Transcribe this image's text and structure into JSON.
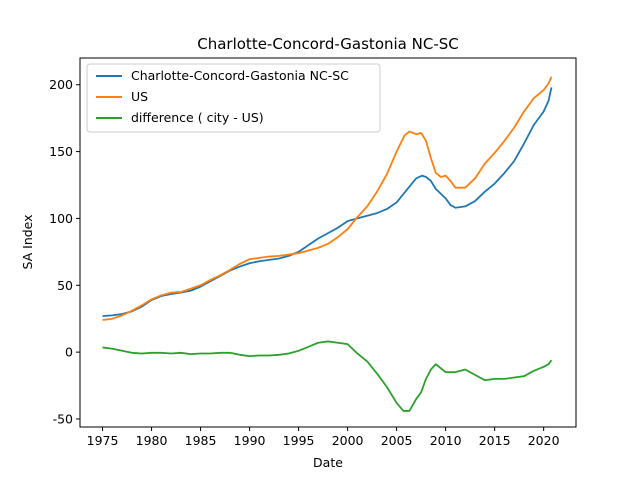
{
  "chart_data": {
    "type": "line",
    "title": "Charlotte-Concord-Gastonia NC-SC",
    "xlabel": "Date",
    "ylabel": "SA Index",
    "xlim": [
      1972.7,
      2023.3
    ],
    "ylim": [
      -56,
      220
    ],
    "xticks": [
      1975,
      1980,
      1985,
      1990,
      1995,
      2000,
      2005,
      2010,
      2015,
      2020
    ],
    "yticks": [
      -50,
      0,
      50,
      100,
      150,
      200
    ],
    "grid": false,
    "legend_position": "top-left",
    "series": [
      {
        "name": "Charlotte-Concord-Gastonia NC-SC",
        "color": "#1f77b4",
        "points": [
          [
            1975,
            27
          ],
          [
            1976,
            27.5
          ],
          [
            1977,
            28.5
          ],
          [
            1978,
            30.5
          ],
          [
            1979,
            34
          ],
          [
            1980,
            39
          ],
          [
            1981,
            42
          ],
          [
            1982,
            43.5
          ],
          [
            1983,
            44.5
          ],
          [
            1984,
            46
          ],
          [
            1985,
            49
          ],
          [
            1986,
            53
          ],
          [
            1987,
            57
          ],
          [
            1988,
            61
          ],
          [
            1989,
            64
          ],
          [
            1990,
            66.5
          ],
          [
            1991,
            68
          ],
          [
            1992,
            69
          ],
          [
            1993,
            70
          ],
          [
            1994,
            72
          ],
          [
            1995,
            75
          ],
          [
            1996,
            80
          ],
          [
            1997,
            85
          ],
          [
            1998,
            89
          ],
          [
            1999,
            93
          ],
          [
            2000,
            98
          ],
          [
            2001,
            100
          ],
          [
            2002,
            102
          ],
          [
            2003,
            104
          ],
          [
            2004,
            107
          ],
          [
            2005,
            112
          ],
          [
            2006,
            121
          ],
          [
            2007,
            130
          ],
          [
            2007.6,
            132
          ],
          [
            2008,
            131
          ],
          [
            2008.5,
            128
          ],
          [
            2009,
            122
          ],
          [
            2010,
            115
          ],
          [
            2010.5,
            110
          ],
          [
            2011,
            108
          ],
          [
            2012,
            109
          ],
          [
            2013,
            113
          ],
          [
            2014,
            120
          ],
          [
            2015,
            126
          ],
          [
            2016,
            134
          ],
          [
            2017,
            143
          ],
          [
            2018,
            156
          ],
          [
            2019,
            170
          ],
          [
            2020,
            180
          ],
          [
            2020.5,
            188
          ],
          [
            2020.8,
            198
          ]
        ]
      },
      {
        "name": "US",
        "color": "#ff7f0e",
        "points": [
          [
            1975,
            24
          ],
          [
            1976,
            25
          ],
          [
            1977,
            27.5
          ],
          [
            1978,
            31
          ],
          [
            1979,
            35
          ],
          [
            1980,
            39.5
          ],
          [
            1981,
            42.5
          ],
          [
            1982,
            44.5
          ],
          [
            1983,
            45
          ],
          [
            1984,
            47.5
          ],
          [
            1985,
            50
          ],
          [
            1986,
            54
          ],
          [
            1987,
            57.5
          ],
          [
            1988,
            61.5
          ],
          [
            1989,
            66
          ],
          [
            1990,
            69.5
          ],
          [
            1991,
            70.5
          ],
          [
            1992,
            71.5
          ],
          [
            1993,
            72
          ],
          [
            1994,
            73
          ],
          [
            1995,
            74
          ],
          [
            1996,
            76
          ],
          [
            1997,
            78
          ],
          [
            1998,
            81
          ],
          [
            1999,
            86
          ],
          [
            2000,
            92
          ],
          [
            2001,
            101
          ],
          [
            2002,
            109
          ],
          [
            2003,
            120
          ],
          [
            2004,
            133
          ],
          [
            2005,
            150
          ],
          [
            2005.8,
            162
          ],
          [
            2006.3,
            165
          ],
          [
            2007,
            163
          ],
          [
            2007.5,
            164
          ],
          [
            2008,
            158
          ],
          [
            2008.5,
            145
          ],
          [
            2009,
            134
          ],
          [
            2009.5,
            131
          ],
          [
            2010,
            132
          ],
          [
            2010.5,
            128
          ],
          [
            2011,
            123
          ],
          [
            2012,
            123
          ],
          [
            2013,
            130
          ],
          [
            2014,
            141
          ],
          [
            2015,
            149
          ],
          [
            2016,
            158
          ],
          [
            2017,
            168
          ],
          [
            2018,
            180
          ],
          [
            2019,
            190
          ],
          [
            2020,
            196
          ],
          [
            2020.5,
            201
          ],
          [
            2020.8,
            206
          ]
        ]
      },
      {
        "name": "difference ( city - US)",
        "color": "#2ca02c",
        "points": [
          [
            1975,
            3.5
          ],
          [
            1976,
            2.5
          ],
          [
            1977,
            1
          ],
          [
            1978,
            -0.5
          ],
          [
            1979,
            -1
          ],
          [
            1980,
            -0.5
          ],
          [
            1981,
            -0.5
          ],
          [
            1982,
            -1
          ],
          [
            1983,
            -0.5
          ],
          [
            1984,
            -1.5
          ],
          [
            1985,
            -1
          ],
          [
            1986,
            -1
          ],
          [
            1987,
            -0.5
          ],
          [
            1988,
            -0.5
          ],
          [
            1989,
            -2
          ],
          [
            1990,
            -3
          ],
          [
            1991,
            -2.5
          ],
          [
            1992,
            -2.5
          ],
          [
            1993,
            -2
          ],
          [
            1994,
            -1
          ],
          [
            1995,
            1
          ],
          [
            1996,
            4
          ],
          [
            1997,
            7
          ],
          [
            1998,
            8
          ],
          [
            1999,
            7
          ],
          [
            2000,
            6
          ],
          [
            2001,
            -1
          ],
          [
            2002,
            -7
          ],
          [
            2003,
            -16
          ],
          [
            2004,
            -26
          ],
          [
            2005,
            -38
          ],
          [
            2005.7,
            -44
          ],
          [
            2006.3,
            -44
          ],
          [
            2007,
            -35
          ],
          [
            2007.5,
            -30
          ],
          [
            2008,
            -20
          ],
          [
            2008.5,
            -13
          ],
          [
            2009,
            -9
          ],
          [
            2009.5,
            -12
          ],
          [
            2010,
            -15
          ],
          [
            2011,
            -15
          ],
          [
            2012,
            -13
          ],
          [
            2013,
            -17
          ],
          [
            2014,
            -21
          ],
          [
            2015,
            -20
          ],
          [
            2016,
            -20
          ],
          [
            2017,
            -19
          ],
          [
            2018,
            -18
          ],
          [
            2019,
            -14
          ],
          [
            2020,
            -11
          ],
          [
            2020.5,
            -9
          ],
          [
            2020.8,
            -6
          ]
        ]
      }
    ]
  }
}
